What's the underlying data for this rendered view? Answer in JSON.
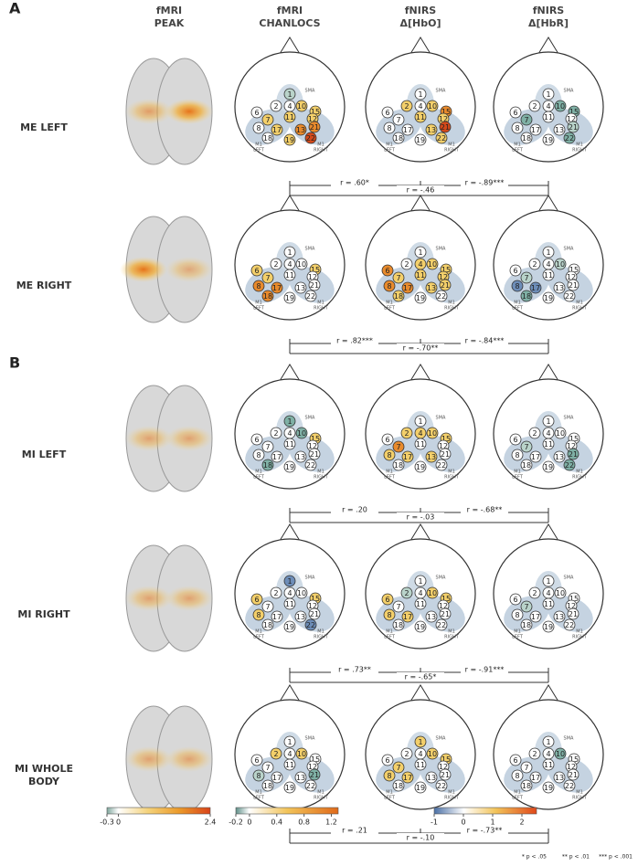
{
  "sections": [
    {
      "label": "A",
      "rows": [
        {
          "label": [
            "ME LEFT"
          ],
          "maps": [
            "gwwywyyywyoyowyr",
            "wywywwyowyywrwwy",
            "wwwtwtwtwwwwgwwt"
          ],
          "correlations": [
            "r = .60*",
            "r = -.89***",
            "r = -.46"
          ]
        },
        {
          "label": [
            "ME RIGHT"
          ],
          "maps": [
            "wwwwyywyowwowoww",
            "wwyyoyyyoyyoyyww",
            "wwwgwgwwbwwbwtww"
          ],
          "correlations": [
            "r = .82***",
            "r = -.84***",
            "r = -.70**"
          ]
        }
      ]
    },
    {
      "label": "B",
      "rows": [
        {
          "label": [
            "MI LEFT"
          ],
          "maps": [
            "twwtwwwywwwwwtww",
            "wyyywowyywyywwww",
            "wwwwwgwwwwwwtwwt"
          ],
          "correlations": [
            "r = .20",
            "r = -.68**",
            "r = -.03"
          ]
        },
        {
          "label": [
            "MI RIGHT"
          ],
          "maps": [
            "bwwwywwyywwwwwwb",
            "wgwyywwyywwywwww",
            "wwwwwgwwwwwwwwww"
          ],
          "correlations": [
            "r = .73**",
            "r = -.91***",
            "r = -.65*"
          ]
        },
        {
          "label": [
            "MI WHOLE",
            "BODY"
          ],
          "maps": [
            "wywywwwwgwwwtwww",
            "ywwywywyywwywwww",
            "wwwtwwwwwwwwwwww"
          ],
          "correlations": [
            "r = .21",
            "r = -.73**",
            "r = -.10"
          ]
        }
      ]
    }
  ],
  "columns": [
    [
      "fMRI",
      "PEAK"
    ],
    [
      "fMRI",
      "CHANLOCS"
    ],
    [
      "fNIRS",
      "Δ[HbO]"
    ],
    [
      "fNIRS",
      "Δ[HbR]"
    ]
  ],
  "channels": [
    "1",
    "2",
    "4",
    "10",
    "6",
    "7",
    "11",
    "15",
    "8",
    "12",
    "13",
    "17",
    "21",
    "18",
    "19",
    "22"
  ],
  "region_labels": {
    "sma": "SMA",
    "left": [
      "M1",
      "LEFT"
    ],
    "right": [
      "M1",
      "RIGHT"
    ]
  },
  "palette": {
    "w": "#ffffff",
    "y": "#f3cf6a",
    "o": "#e88a2c",
    "r": "#d4491a",
    "g": "#b9d3ca",
    "t": "#7fb0a5",
    "b": "#6d8db8"
  },
  "colorbars": [
    {
      "lim": [
        -0.3,
        2.4
      ],
      "ticks": [
        -0.3,
        0,
        2.4
      ]
    },
    {
      "lim": [
        -0.2,
        1.3
      ],
      "ticks": [
        -0.2,
        0,
        0.4,
        0.8,
        1.2
      ]
    },
    {
      "lim": [
        -1,
        2.5
      ],
      "ticks": [
        -1,
        0,
        1,
        2
      ]
    }
  ],
  "footnote": [
    "* p < .05",
    "** p < .01",
    "*** p < .001"
  ]
}
